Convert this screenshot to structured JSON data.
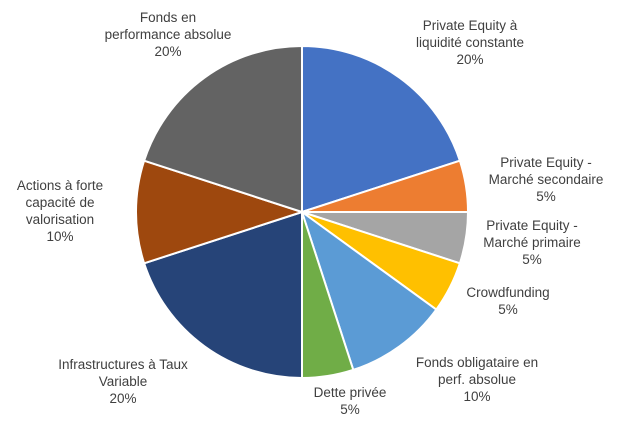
{
  "chart_data": {
    "type": "pie",
    "start_angle_deg": 0,
    "direction": "clockwise",
    "slices": [
      {
        "label_lines": [
          "Private Equity à",
          "liquidité constante"
        ],
        "value": 20,
        "value_label": "20%",
        "color": "#4472c4"
      },
      {
        "label_lines": [
          "Private Equity -",
          "Marché secondaire"
        ],
        "value": 5,
        "value_label": "5%",
        "color": "#ed7d31"
      },
      {
        "label_lines": [
          "Private Equity -",
          "Marché primaire"
        ],
        "value": 5,
        "value_label": "5%",
        "color": "#a5a5a5"
      },
      {
        "label_lines": [
          "Crowdfunding"
        ],
        "value": 5,
        "value_label": "5%",
        "color": "#ffc000"
      },
      {
        "label_lines": [
          "Fonds obligataire en",
          "perf. absolue"
        ],
        "value": 10,
        "value_label": "10%",
        "color": "#5b9bd5"
      },
      {
        "label_lines": [
          "Dette privée"
        ],
        "value": 5,
        "value_label": "5%",
        "color": "#70ad47"
      },
      {
        "label_lines": [
          "Infrastructures à Taux",
          "Variable"
        ],
        "value": 20,
        "value_label": "20%",
        "color": "#264478"
      },
      {
        "label_lines": [
          "Actions à forte",
          "capacité de",
          "valorisation"
        ],
        "value": 10,
        "value_label": "10%",
        "color": "#9e480e"
      },
      {
        "label_lines": [
          "Fonds en",
          "performance absolue"
        ],
        "value": 20,
        "value_label": "20%",
        "color": "#636363"
      }
    ]
  }
}
